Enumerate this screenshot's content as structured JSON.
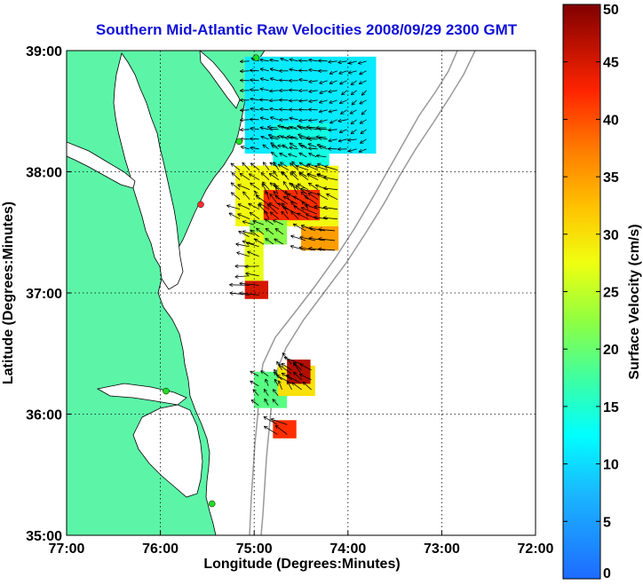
{
  "chart_data": {
    "type": "heatmap",
    "title": "Southern Mid-Atlantic Raw Velocities 2008/09/29 2300 GMT",
    "xlabel": "Longitude (Degrees:Minutes)",
    "ylabel": "Latitude (Degrees:Minutes)",
    "x_ticks": [
      "77:00",
      "76:00",
      "75:00",
      "74:00",
      "73:00",
      "72:00"
    ],
    "y_ticks": [
      "39:00",
      "38:00",
      "37:00",
      "36:00",
      "35:00"
    ],
    "xlim": [
      -77,
      -72
    ],
    "ylim": [
      35,
      39
    ],
    "grid": true,
    "colorbar": {
      "label": "Surface Velocity (cm/s)",
      "ticks": [
        "0",
        "5",
        "10",
        "15",
        "20",
        "25",
        "30",
        "35",
        "40",
        "45",
        "50"
      ],
      "range": [
        0,
        50
      ]
    },
    "field_regions": [
      {
        "lon": [
          -75.1,
          -73.7
        ],
        "lat": [
          38.15,
          38.95
        ],
        "speed": 11
      },
      {
        "lon": [
          -74.8,
          -74.2
        ],
        "lat": [
          37.9,
          38.4
        ],
        "speed": 14
      },
      {
        "lon": [
          -75.2,
          -74.1
        ],
        "lat": [
          37.55,
          38.05
        ],
        "speed": 28
      },
      {
        "lon": [
          -74.9,
          -74.3
        ],
        "lat": [
          37.6,
          37.85
        ],
        "speed": 42
      },
      {
        "lon": [
          -75.05,
          -74.65
        ],
        "lat": [
          37.4,
          37.6
        ],
        "speed": 22
      },
      {
        "lon": [
          -74.5,
          -74.1
        ],
        "lat": [
          37.35,
          37.55
        ],
        "speed": 35
      },
      {
        "lon": [
          -75.1,
          -74.9
        ],
        "lat": [
          37.1,
          37.5
        ],
        "speed": 27
      },
      {
        "lon": [
          -75.1,
          -74.85
        ],
        "lat": [
          36.95,
          37.1
        ],
        "speed": 45
      },
      {
        "lon": [
          -75.0,
          -74.65
        ],
        "lat": [
          36.05,
          36.35
        ],
        "speed": 19
      },
      {
        "lon": [
          -74.75,
          -74.35
        ],
        "lat": [
          36.15,
          36.4
        ],
        "speed": 30
      },
      {
        "lon": [
          -74.65,
          -74.4
        ],
        "lat": [
          36.25,
          36.45
        ],
        "speed": 47
      },
      {
        "lon": [
          -74.8,
          -74.55
        ],
        "lat": [
          35.8,
          35.95
        ],
        "speed": 42
      }
    ]
  },
  "colors": {
    "land": "#5cf5a8",
    "water": "#ffffff",
    "title": "#1010d8",
    "coast": "#000000",
    "shelf_contour": "#999999",
    "station": "#22dd22"
  }
}
